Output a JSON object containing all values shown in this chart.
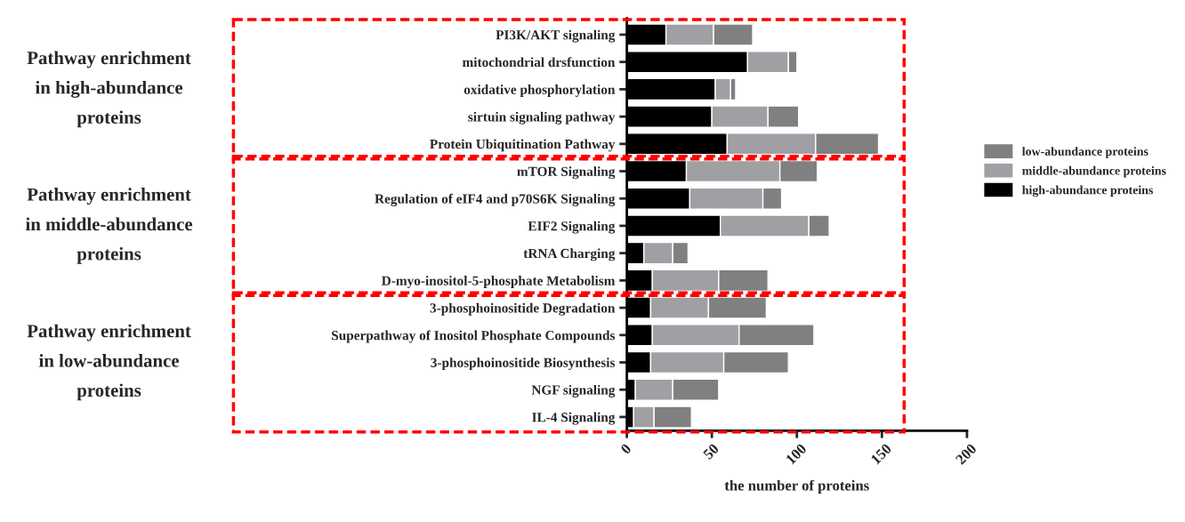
{
  "chart_data": {
    "type": "bar",
    "orientation": "horizontal",
    "stacked": true,
    "categories": [
      "PI3K/AKT signaling",
      "mitochondrial drsfunction",
      "oxidative phosphorylation",
      "sirtuin signaling pathway",
      "Protein Ubiquitination Pathway",
      "mTOR Signaling",
      "Regulation of eIF4 and p70S6K Signaling",
      "EIF2 Signaling",
      "tRNA Charging",
      "D-myo-inositol-5-phosphate Metabolism",
      "3-phosphoinositide Degradation",
      "Superpathway of Inositol Phosphate Compounds",
      "3-phosphoinositide Biosynthesis",
      "NGF signaling",
      "IL-4 Signaling"
    ],
    "series": [
      {
        "name": "high-abundance proteins",
        "color": "#000000",
        "values": [
          23,
          71,
          52,
          50,
          59,
          35,
          37,
          55,
          10,
          15,
          14,
          15,
          14,
          5,
          4
        ]
      },
      {
        "name": "middle-abundance proteins",
        "color": "#a0a0a4",
        "values": [
          28,
          24,
          9,
          33,
          52,
          55,
          43,
          52,
          17,
          39,
          34,
          51,
          43,
          22,
          12
        ]
      },
      {
        "name": "low-abundance proteins",
        "color": "#808080",
        "values": [
          23,
          5,
          3,
          18,
          37,
          22,
          11,
          12,
          9,
          29,
          34,
          44,
          38,
          27,
          22
        ]
      }
    ],
    "xlim": [
      0,
      200
    ],
    "xticks": [
      0,
      50,
      100,
      150,
      200
    ],
    "xlabel": "the number of proteins",
    "legend": "right",
    "grid": false,
    "annotations": [
      "Pathway enrichment\nin high-abundance\nproteins",
      "Pathway enrichment\nin middle-abundance\nproteins",
      "Pathway enrichment\nin low-abundance\nproteins"
    ]
  }
}
